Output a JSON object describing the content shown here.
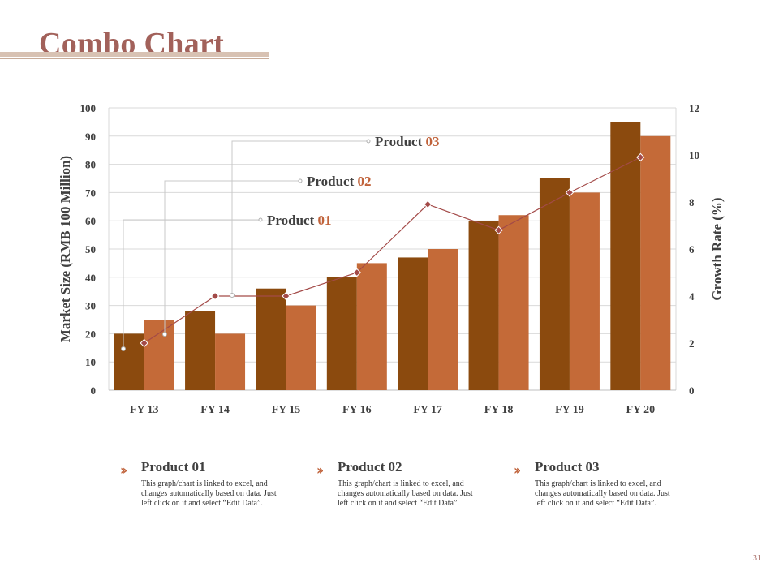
{
  "slide": {
    "title": "Combo Chart",
    "page_number": "31"
  },
  "chart_data": {
    "type": "bar",
    "categories": [
      "FY 13",
      "FY 14",
      "FY 15",
      "FY 16",
      "FY 17",
      "FY 18",
      "FY 19",
      "FY 20"
    ],
    "series": [
      {
        "name": "Product 01",
        "type": "bar",
        "axis": "left",
        "color": "#8b4a0e",
        "values": [
          20,
          28,
          36,
          40,
          47,
          60,
          75,
          95
        ]
      },
      {
        "name": "Product 02",
        "type": "bar",
        "axis": "left",
        "color": "#c46a38",
        "values": [
          25,
          20,
          30,
          45,
          50,
          62,
          70,
          90
        ]
      },
      {
        "name": "Product 03",
        "type": "line",
        "axis": "right",
        "color": "#a34a48",
        "values": [
          2,
          4,
          4,
          5,
          7.9,
          6.8,
          8.4,
          9.9
        ]
      }
    ],
    "ylabel": "Market Size (RMB 100 Million)",
    "y2label": "Growth Rate (%)",
    "ylim": [
      0,
      100
    ],
    "y2lim": [
      0,
      12
    ],
    "yticks": [
      "0",
      "10",
      "20",
      "30",
      "40",
      "50",
      "60",
      "70",
      "80",
      "90",
      "100"
    ],
    "y2ticks": [
      "0",
      "2",
      "4",
      "6",
      "8",
      "10",
      "12"
    ],
    "callouts": [
      {
        "word": "Product",
        "num": "01"
      },
      {
        "word": "Product",
        "num": "02"
      },
      {
        "word": "Product",
        "num": "03"
      }
    ]
  },
  "descriptions": [
    {
      "title": "Product 01",
      "text": "This graph/chart is linked to excel, and changes automatically based on data. Just left click on it and select “Edit Data”."
    },
    {
      "title": "Product 02",
      "text": "This graph/chart is linked to excel, and changes automatically based on data. Just left click on it and select “Edit Data”."
    },
    {
      "title": "Product 03",
      "text": "This graph/chart is linked to excel, and changes automatically based on data. Just left click on it and select “Edit Data”."
    }
  ],
  "colors": {
    "title": "#a2615a",
    "accent_number": "#c0623a",
    "axis_text": "#404040",
    "gridline": "#d9d9d9",
    "callout_line": "#c8c8c8"
  }
}
